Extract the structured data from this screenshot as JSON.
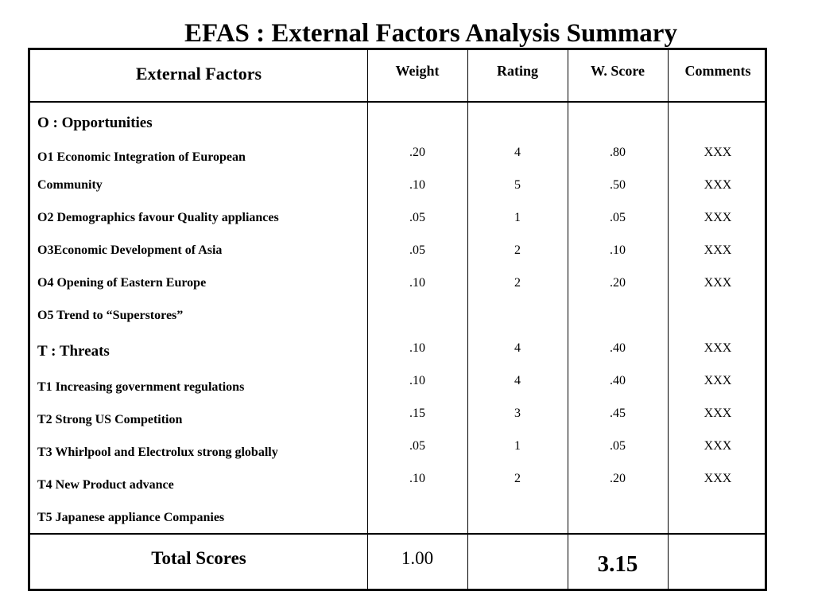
{
  "title": "EFAS : External Factors Analysis Summary",
  "headers": {
    "factors": "External Factors",
    "weight": "Weight",
    "rating": "Rating",
    "score": "W. Score",
    "comments": "Comments"
  },
  "opportunities": {
    "label": "O : Opportunities",
    "items": [
      "O1 Economic Integration of European",
      "Community",
      "O2 Demographics favour Quality appliances",
      "O3Economic Development of Asia",
      "O4 Opening of Eastern Europe",
      "O5 Trend to “Superstores”"
    ]
  },
  "threats": {
    "label": "T : Threats",
    "items": [
      "T1 Increasing government regulations",
      "T2 Strong US Competition",
      "T3 Whirlpool and Electrolux strong globally",
      "T4 New Product advance",
      "T5 Japanese appliance Companies"
    ]
  },
  "values": [
    {
      "weight": ".20",
      "rating": "4",
      "score": ".80",
      "comment": "XXX"
    },
    {
      "weight": ".10",
      "rating": "5",
      "score": ".50",
      "comment": "XXX"
    },
    {
      "weight": ".05",
      "rating": "1",
      "score": ".05",
      "comment": "XXX"
    },
    {
      "weight": ".05",
      "rating": "2",
      "score": ".10",
      "comment": "XXX"
    },
    {
      "weight": ".10",
      "rating": "2",
      "score": ".20",
      "comment": "XXX"
    },
    {
      "weight": ".10",
      "rating": "4",
      "score": ".40",
      "comment": "XXX"
    },
    {
      "weight": ".10",
      "rating": "4",
      "score": ".40",
      "comment": "XXX"
    },
    {
      "weight": ".15",
      "rating": "3",
      "score": ".45",
      "comment": "XXX"
    },
    {
      "weight": ".05",
      "rating": "1",
      "score": ".05",
      "comment": "XXX"
    },
    {
      "weight": ".10",
      "rating": "2",
      "score": ".20",
      "comment": "XXX"
    }
  ],
  "totals": {
    "label": "Total Scores",
    "weight": "1.00",
    "score": "3.15"
  }
}
